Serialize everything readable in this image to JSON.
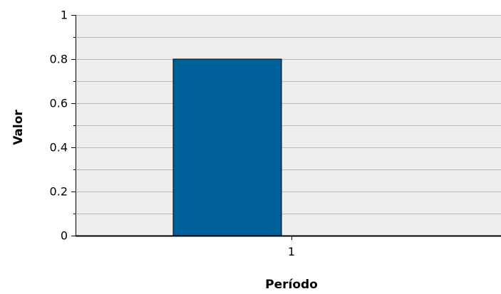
{
  "chart_data": {
    "type": "bar",
    "title": "",
    "xlabel": "Período",
    "ylabel": "Valor",
    "categories": [
      "1"
    ],
    "values": [
      0.8
    ],
    "ylim": [
      0,
      1
    ],
    "yticks": [
      "0",
      "0.2",
      "0.4",
      "0.6",
      "0.8",
      "1"
    ],
    "grid": true,
    "legend": "none"
  },
  "colors": {
    "bar": "#006199",
    "plot_background": "#eeeeee",
    "gridline": "#bbbbbb",
    "axis": "#000000"
  }
}
